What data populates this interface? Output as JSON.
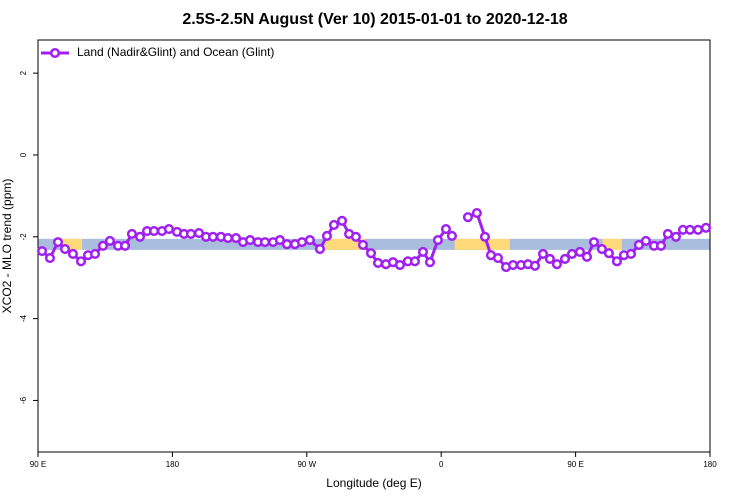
{
  "chart_data": {
    "type": "line",
    "title": "2.5S-2.5N August (Ver 10)   2015-01-01 to 2020-12-18",
    "x_label": "Longitude (deg E)",
    "y_label": "XCO2 - MLO trend (ppm)",
    "xlim": [
      90,
      540
    ],
    "ylim": [
      -7.26,
      2.81
    ],
    "xticks": [
      {
        "value": 90,
        "label": "90 E"
      },
      180,
      {
        "value": 270,
        "label": "90 W"
      },
      {
        "value": 360,
        "label": "0"
      },
      {
        "value": 450,
        "label": "90 E"
      },
      {
        "value": 540,
        "label": "180"
      }
    ],
    "yticks": [
      2,
      0,
      -2,
      -4,
      -6
    ],
    "band": {
      "ylim": [
        -2.32,
        -2.05
      ],
      "color": "#a9bddf"
    },
    "land": {
      "color": "#ffd97a",
      "ranges": [
        [
          106,
          119.5
        ],
        [
          282,
          309
        ],
        [
          369,
          406
        ],
        [
          468,
          481
        ]
      ]
    },
    "legend_position": "top-left",
    "x": [
      92.7,
      98.0,
      103.4,
      108.1,
      113.4,
      118.8,
      123.5,
      128.2,
      133.5,
      138.2,
      143.6,
      148.3,
      152.9,
      158.3,
      163.0,
      167.7,
      173.0,
      177.7,
      183.1,
      187.8,
      192.4,
      197.8,
      202.5,
      207.2,
      212.5,
      217.2,
      222.6,
      227.3,
      232.0,
      237.3,
      242.0,
      247.4,
      252.0,
      256.7,
      262.1,
      266.8,
      272.1,
      278.8,
      283.5,
      288.2,
      293.6,
      298.3,
      302.9,
      307.6,
      313.0,
      317.7,
      323.0,
      327.7,
      332.4,
      337.7,
      342.4,
      347.8,
      352.5,
      357.8,
      363.2,
      367.2,
      372.5,
      377.9,
      383.9,
      389.3,
      393.3,
      398.0,
      403.4,
      408.1,
      413.4,
      418.1,
      422.8,
      428.2,
      432.8,
      437.5,
      442.9,
      447.6,
      452.9,
      457.6,
      462.3,
      467.6,
      472.3,
      477.7,
      482.4,
      487.1,
      492.4,
      497.1,
      502.5,
      507.2,
      511.8,
      517.2,
      521.9,
      526.6,
      532.0,
      537.3
    ],
    "series": [
      {
        "name": "Land (Nadir&Glint) and Ocean (Glint)",
        "color": "#a020f0",
        "values": [
          -2.35,
          -2.52,
          -2.13,
          -2.3,
          -2.42,
          -2.6,
          -2.45,
          -2.42,
          -2.22,
          -2.1,
          -2.22,
          -2.22,
          -1.93,
          -2.0,
          -1.86,
          -1.86,
          -1.86,
          -1.81,
          -1.88,
          -1.93,
          -1.93,
          -1.91,
          -2.0,
          -2.0,
          -2.0,
          -2.03,
          -2.03,
          -2.13,
          -2.08,
          -2.13,
          -2.13,
          -2.13,
          -2.08,
          -2.18,
          -2.18,
          -2.13,
          -2.08,
          -2.3,
          -1.98,
          -1.71,
          -1.61,
          -1.93,
          -2.0,
          -2.2,
          -2.4,
          -2.64,
          -2.67,
          -2.62,
          -2.69,
          -2.6,
          -2.6,
          -2.37,
          -2.62,
          -2.08,
          -1.81,
          -1.98,
          null,
          -1.52,
          -1.42,
          -2.0,
          -2.45,
          -2.52,
          -2.74,
          -2.69,
          -2.69,
          -2.67,
          -2.71,
          -2.42,
          -2.54,
          -2.67,
          -2.54,
          -2.42,
          -2.37,
          -2.49,
          -2.13,
          -2.3,
          -2.4,
          -2.6,
          -2.45,
          -2.42,
          -2.2,
          -2.1,
          -2.22,
          -2.22,
          -1.93,
          -2.0,
          -1.83,
          -1.83,
          -1.83,
          -1.78
        ]
      }
    ]
  }
}
